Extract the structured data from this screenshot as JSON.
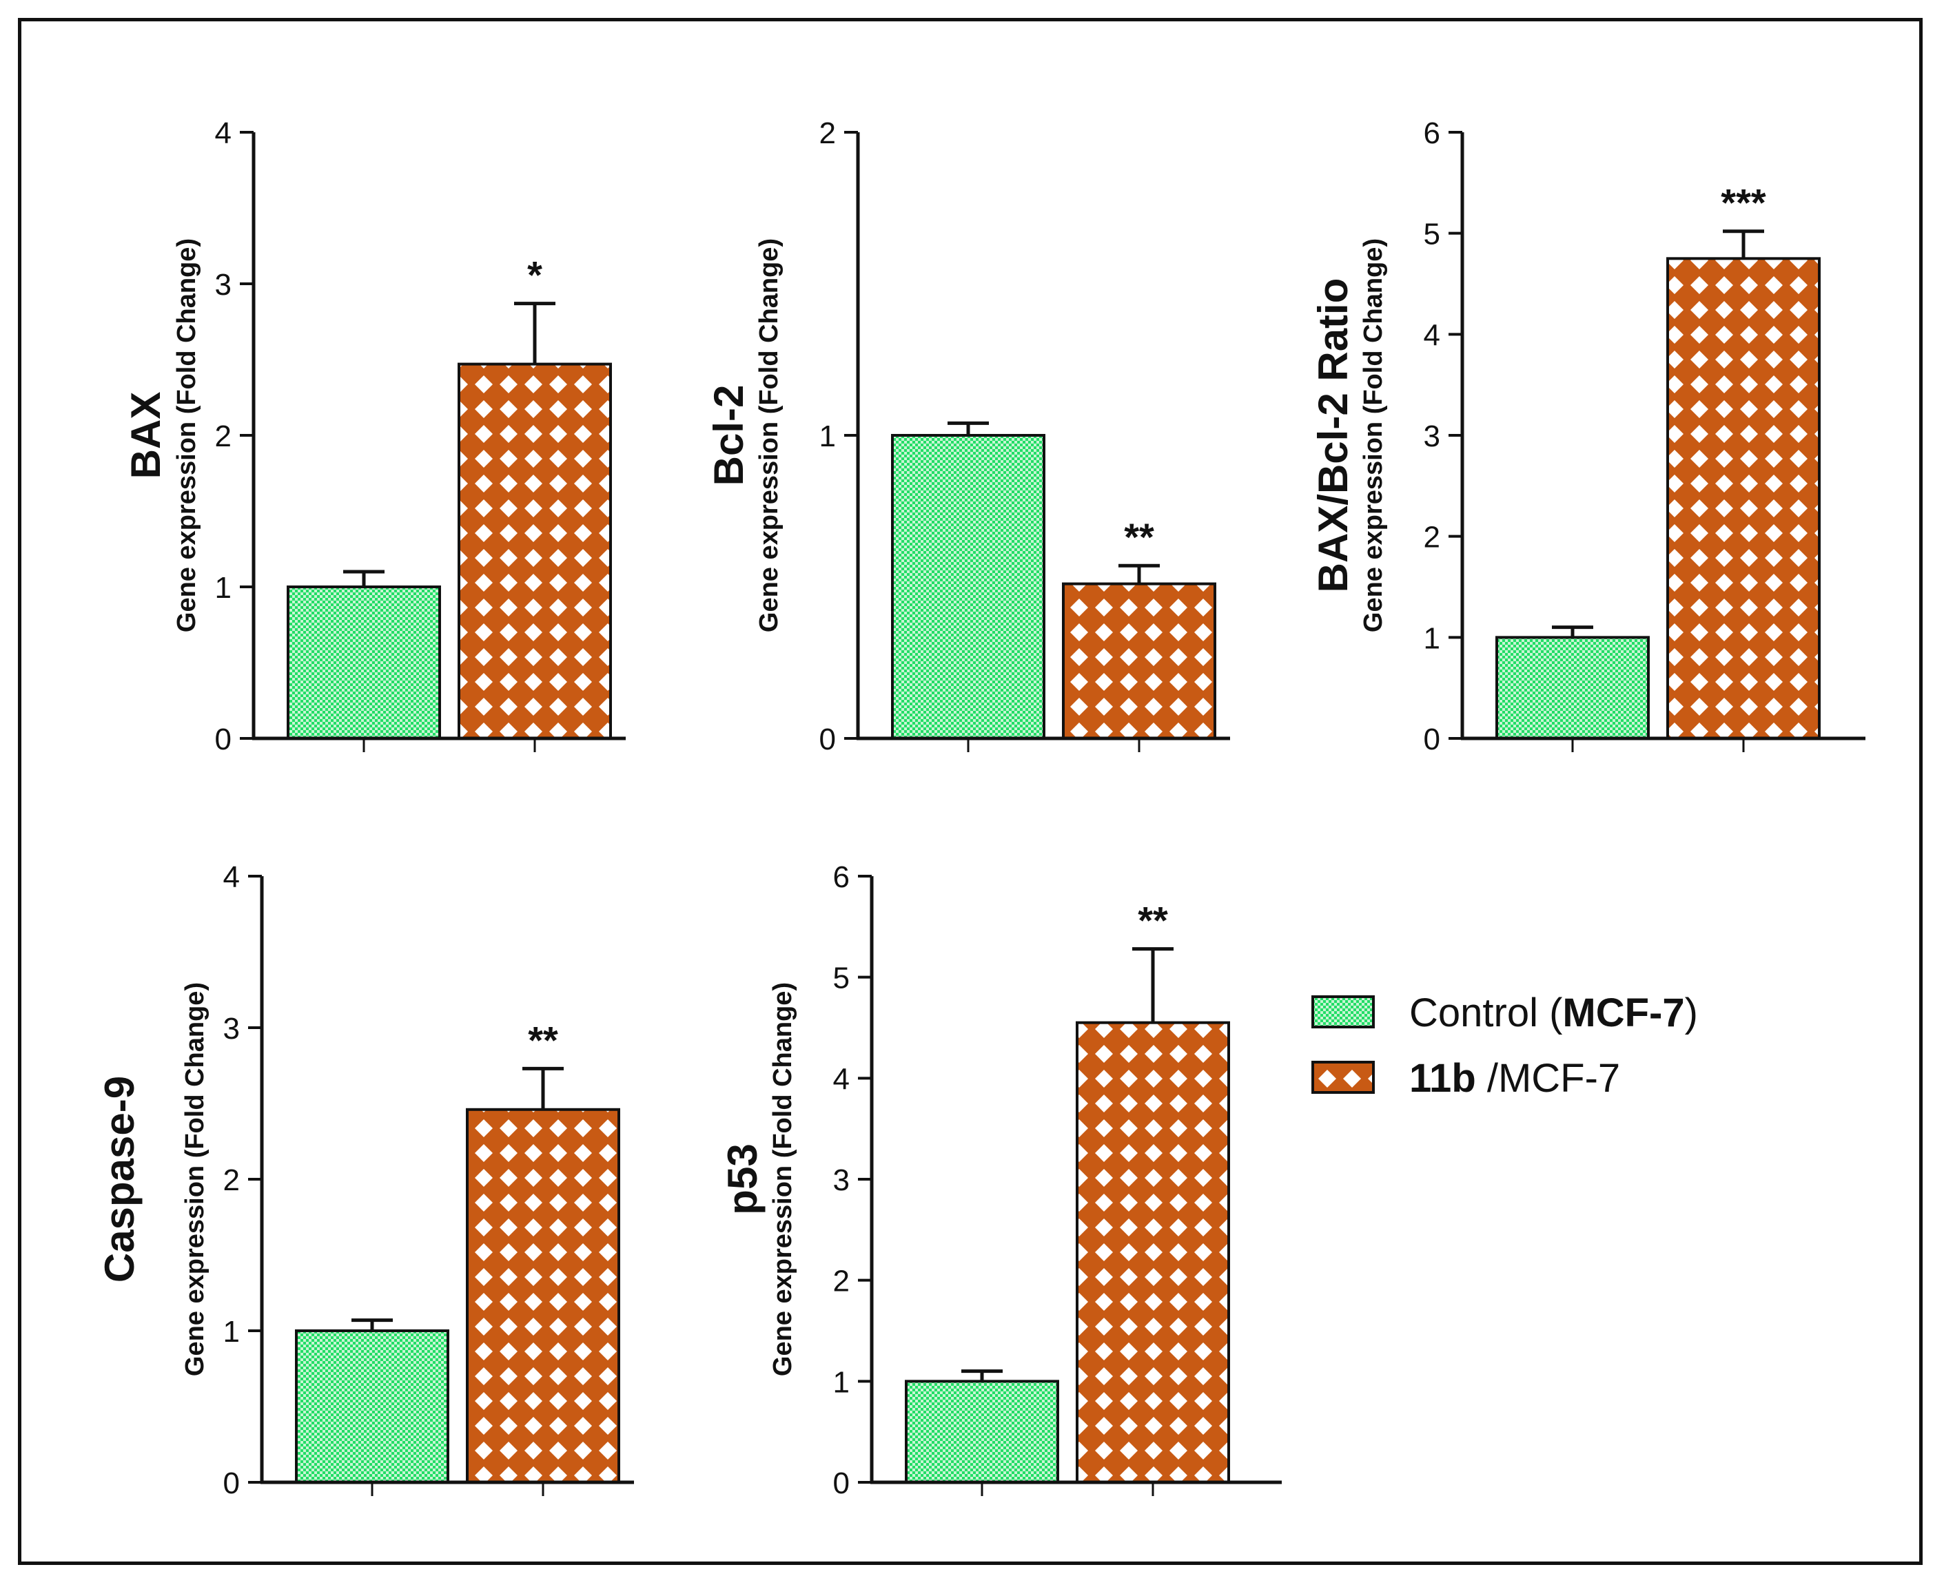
{
  "legend": {
    "control": {
      "prefix": "Control (",
      "bold": "MCF-7",
      "suffix": ")"
    },
    "treated": {
      "bold": "11b",
      "suffix": " /MCF-7"
    }
  },
  "colors": {
    "control_fill": "#22dd66",
    "control_dot": "#c8f5d4",
    "treated_fill": "#c85a14",
    "treated_diamond": "#ffffff",
    "axis": "#111111"
  },
  "chart_data": [
    {
      "type": "bar",
      "gene": "BAX",
      "ylabel": "Gene expression  (Fold Change)",
      "ylim": [
        0,
        4
      ],
      "yticks": [
        "0",
        "1",
        "2",
        "3",
        "4"
      ],
      "categories": [
        "Control (MCF-7)",
        "11b /MCF-7"
      ],
      "values": [
        1.0,
        2.47
      ],
      "errors": [
        0.1,
        0.4
      ],
      "significance": [
        "",
        "*"
      ]
    },
    {
      "type": "bar",
      "gene": "Bcl-2",
      "ylabel": "Gene expression  (Fold Change)",
      "ylim": [
        0,
        2
      ],
      "yticks": [
        "0",
        "1",
        "2"
      ],
      "categories": [
        "Control (MCF-7)",
        "11b /MCF-7"
      ],
      "values": [
        1.0,
        0.51
      ],
      "errors": [
        0.04,
        0.06
      ],
      "significance": [
        "",
        "**"
      ]
    },
    {
      "type": "bar",
      "gene": "BAX/Bcl-2 Ratio",
      "ylabel": "Gene expression  (Fold Change)",
      "ylim": [
        0,
        6
      ],
      "yticks": [
        "0",
        "1",
        "2",
        "3",
        "4",
        "5",
        "6"
      ],
      "categories": [
        "Control (MCF-7)",
        "11b /MCF-7"
      ],
      "values": [
        1.0,
        4.75
      ],
      "errors": [
        0.1,
        0.27
      ],
      "significance": [
        "",
        "***"
      ]
    },
    {
      "type": "bar",
      "gene": "Caspase-9",
      "ylabel": "Gene expression  (Fold Change)",
      "ylim": [
        0,
        4
      ],
      "yticks": [
        "0",
        "1",
        "2",
        "3",
        "4"
      ],
      "categories": [
        "Control (MCF-7)",
        "11b /MCF-7"
      ],
      "values": [
        1.0,
        2.46
      ],
      "errors": [
        0.07,
        0.27
      ],
      "significance": [
        "",
        "**"
      ]
    },
    {
      "type": "bar",
      "gene": "p53",
      "ylabel": "Gene expression  (Fold Change)",
      "ylim": [
        0,
        6
      ],
      "yticks": [
        "0",
        "1",
        "2",
        "3",
        "4",
        "5",
        "6"
      ],
      "categories": [
        "Control (MCF-7)",
        "11b /MCF-7"
      ],
      "values": [
        1.0,
        4.55
      ],
      "errors": [
        0.1,
        0.73
      ],
      "significance": [
        "",
        "**"
      ]
    }
  ]
}
